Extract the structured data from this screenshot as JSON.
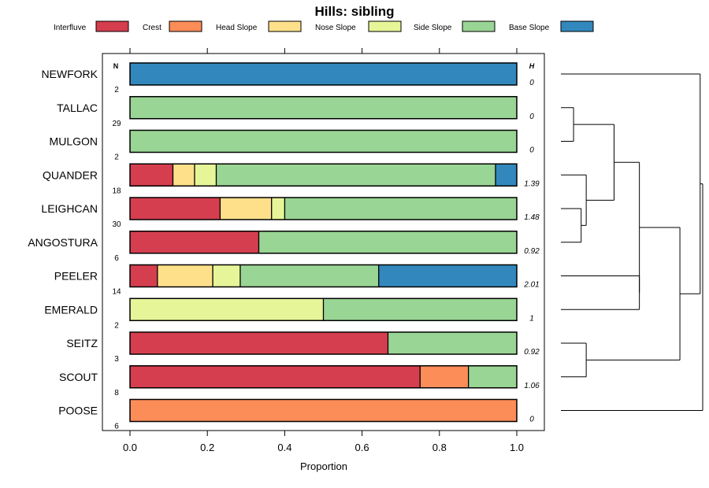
{
  "chart_data": {
    "type": "stacked-bar",
    "title": "Hills: sibling",
    "xlabel": "Proportion",
    "xlim": [
      0,
      1
    ],
    "xticks": [
      0,
      0.2,
      0.4,
      0.6,
      0.8,
      1
    ],
    "xtick_labels": [
      "0.0",
      "0.2",
      "0.4",
      "0.6",
      "0.8",
      "1.0"
    ],
    "column_headers": {
      "n": "N",
      "h": "H"
    },
    "legend": {
      "position": "top",
      "entries": [
        {
          "name": "Interfluve",
          "color": "#d53e4f"
        },
        {
          "name": "Crest",
          "color": "#fc8d59"
        },
        {
          "name": "Head Slope",
          "color": "#fee08b"
        },
        {
          "name": "Nose Slope",
          "color": "#e6f598"
        },
        {
          "name": "Side Slope",
          "color": "#99d594"
        },
        {
          "name": "Base Slope",
          "color": "#3288bd"
        }
      ]
    },
    "rows": [
      {
        "name": "NEWFORK",
        "n": "2",
        "h": "0",
        "values": [
          0,
          0,
          0,
          0,
          0,
          1
        ]
      },
      {
        "name": "TALLAC",
        "n": "29",
        "h": "0",
        "values": [
          0,
          0,
          0,
          0,
          1,
          0
        ]
      },
      {
        "name": "MULGON",
        "n": "2",
        "h": "0",
        "values": [
          0,
          0,
          0,
          0,
          1,
          0
        ]
      },
      {
        "name": "QUANDER",
        "n": "18",
        "h": "1.39",
        "values": [
          0.111,
          0,
          0.056,
          0.056,
          0.722,
          0.055
        ]
      },
      {
        "name": "LEIGHCAN",
        "n": "30",
        "h": "1.48",
        "values": [
          0.233,
          0,
          0.133,
          0.034,
          0.6,
          0
        ]
      },
      {
        "name": "ANGOSTURA",
        "n": "6",
        "h": "0.92",
        "values": [
          0.333,
          0,
          0,
          0,
          0.667,
          0
        ]
      },
      {
        "name": "PEELER",
        "n": "14",
        "h": "2.01",
        "values": [
          0.071,
          0,
          0.143,
          0.071,
          0.358,
          0.357
        ]
      },
      {
        "name": "EMERALD",
        "n": "2",
        "h": "1",
        "values": [
          0,
          0,
          0,
          0.5,
          0.5,
          0
        ]
      },
      {
        "name": "SEITZ",
        "n": "3",
        "h": "0.92",
        "values": [
          0.667,
          0,
          0,
          0,
          0.333,
          0
        ]
      },
      {
        "name": "SCOUT",
        "n": "8",
        "h": "1.06",
        "values": [
          0.75,
          0.125,
          0,
          0,
          0.125,
          0
        ]
      },
      {
        "name": "POOSE",
        "n": "6",
        "h": "0",
        "values": [
          0,
          1,
          0,
          0,
          0,
          0
        ]
      }
    ],
    "dendrogram": {
      "merges": [
        {
          "a": 1,
          "b": 2,
          "height": 0.05
        },
        {
          "a": 4,
          "b": 5,
          "height": 0.08
        },
        {
          "a": 8,
          "b": 9,
          "height": 0.1
        },
        {
          "a": 3,
          "b": "m1",
          "height": 0.1
        },
        {
          "a": "m0",
          "b": "m3",
          "height": 0.21
        },
        {
          "a": 6,
          "b": 7,
          "height": 0.31
        },
        {
          "a": "m4",
          "b": "m5",
          "height": 0.31
        },
        {
          "a": "m2",
          "b": "m6",
          "height": 0.47
        },
        {
          "a": 0,
          "b": "m7",
          "height": 0.55
        },
        {
          "a": "m8",
          "b": 10,
          "height": 0.56
        }
      ]
    }
  }
}
